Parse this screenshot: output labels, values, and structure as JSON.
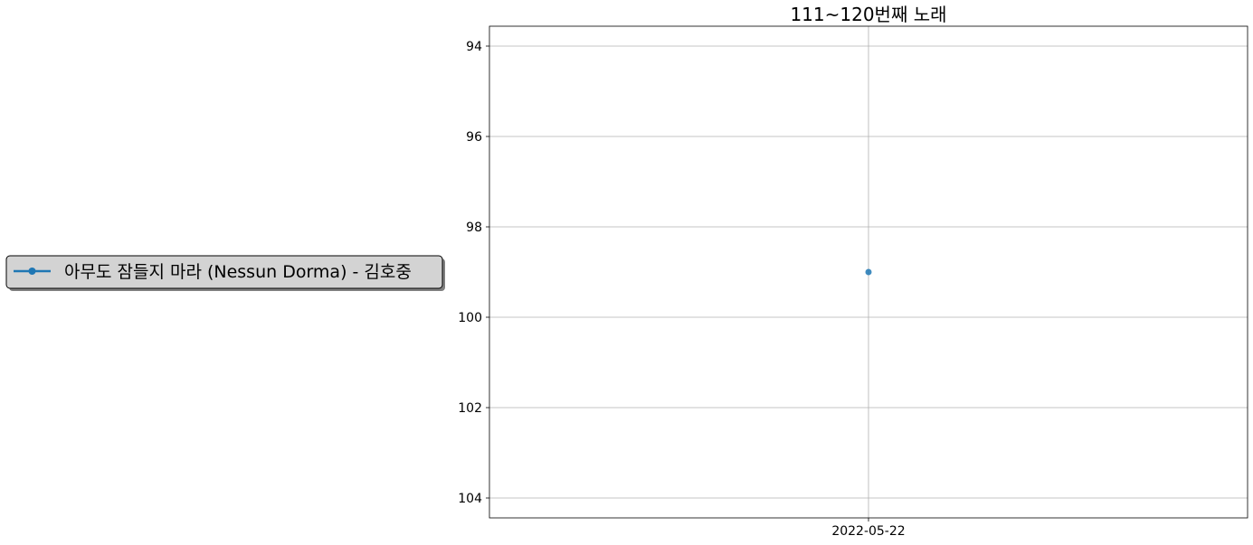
{
  "chart_data": {
    "type": "line",
    "title": "111~120번째 노래",
    "xlabel": "",
    "ylabel": "",
    "x": [
      "2022-05-22"
    ],
    "x_ticks": [
      "2022-05-22"
    ],
    "y_ticks": [
      94,
      96,
      98,
      100,
      102,
      104
    ],
    "ylim": [
      104.44,
      93.56
    ],
    "y_inverted": true,
    "grid": true,
    "legend_position": "outside-left",
    "series": [
      {
        "name": "아무도 잠들지 마라 (Nessun Dorma) - 김호중",
        "x": [
          "2022-05-22"
        ],
        "values": [
          99
        ],
        "color": "#1f77b4",
        "marker": "circle"
      }
    ]
  }
}
